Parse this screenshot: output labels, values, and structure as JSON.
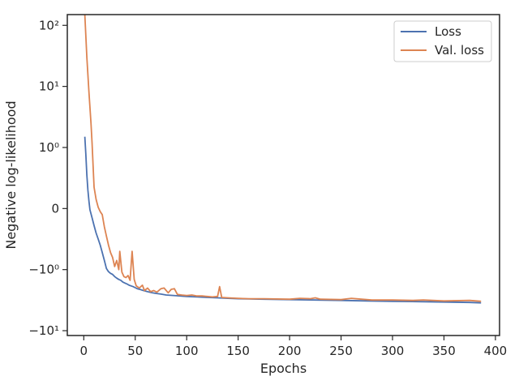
{
  "chart_data": {
    "type": "line",
    "xlabel": "Epochs",
    "ylabel": "Negative log-likelihood",
    "x_ticks": [
      0,
      50,
      100,
      150,
      200,
      250,
      300,
      350,
      400
    ],
    "y_ticks": [
      {
        "value": -10,
        "label": "−10¹"
      },
      {
        "value": -1,
        "label": "−10⁰"
      },
      {
        "value": 0,
        "label": "0"
      },
      {
        "value": 1,
        "label": "10⁰"
      },
      {
        "value": 10,
        "label": "10¹"
      },
      {
        "value": 100,
        "label": "10²"
      }
    ],
    "y_scale": "symlog",
    "xlim": [
      -16,
      404
    ],
    "ylim": [
      -12,
      150
    ],
    "legend_position": "top-right",
    "series": [
      {
        "name": "Loss",
        "color": "#4c72b0",
        "points": [
          [
            1,
            1.5
          ],
          [
            2,
            0.9
          ],
          [
            3,
            0.55
          ],
          [
            4,
            0.3
          ],
          [
            5,
            0.12
          ],
          [
            6,
            -0.02
          ],
          [
            8,
            -0.15
          ],
          [
            10,
            -0.28
          ],
          [
            12,
            -0.4
          ],
          [
            14,
            -0.5
          ],
          [
            16,
            -0.6
          ],
          [
            18,
            -0.72
          ],
          [
            20,
            -0.85
          ],
          [
            22,
            -0.98
          ],
          [
            24,
            -1.08
          ],
          [
            26,
            -1.15
          ],
          [
            28,
            -1.2
          ],
          [
            30,
            -1.3
          ],
          [
            32,
            -1.38
          ],
          [
            34,
            -1.45
          ],
          [
            36,
            -1.5
          ],
          [
            38,
            -1.6
          ],
          [
            40,
            -1.66
          ],
          [
            42,
            -1.72
          ],
          [
            44,
            -1.8
          ],
          [
            46,
            -1.85
          ],
          [
            48,
            -1.9
          ],
          [
            50,
            -1.98
          ],
          [
            52,
            -2.05
          ],
          [
            55,
            -2.12
          ],
          [
            58,
            -2.2
          ],
          [
            62,
            -2.3
          ],
          [
            66,
            -2.38
          ],
          [
            70,
            -2.45
          ],
          [
            75,
            -2.52
          ],
          [
            80,
            -2.6
          ],
          [
            90,
            -2.68
          ],
          [
            100,
            -2.75
          ],
          [
            110,
            -2.8
          ],
          [
            120,
            -2.85
          ],
          [
            130,
            -2.9
          ],
          [
            140,
            -2.95
          ],
          [
            150,
            -3.0
          ],
          [
            175,
            -3.05
          ],
          [
            200,
            -3.1
          ],
          [
            225,
            -3.15
          ],
          [
            250,
            -3.2
          ],
          [
            275,
            -3.25
          ],
          [
            300,
            -3.3
          ],
          [
            325,
            -3.35
          ],
          [
            350,
            -3.4
          ],
          [
            375,
            -3.45
          ],
          [
            386,
            -3.5
          ]
        ]
      },
      {
        "name": "Val. loss",
        "color": "#dd8452",
        "points": [
          [
            1,
            150
          ],
          [
            3,
            30
          ],
          [
            5,
            8
          ],
          [
            7,
            2.5
          ],
          [
            8,
            1.2
          ],
          [
            10,
            0.35
          ],
          [
            12,
            0.15
          ],
          [
            14,
            0.02
          ],
          [
            16,
            -0.05
          ],
          [
            18,
            -0.1
          ],
          [
            20,
            -0.3
          ],
          [
            22,
            -0.45
          ],
          [
            24,
            -0.6
          ],
          [
            26,
            -0.72
          ],
          [
            28,
            -0.8
          ],
          [
            30,
            -0.95
          ],
          [
            32,
            -0.85
          ],
          [
            34,
            -1.0
          ],
          [
            35,
            -0.7
          ],
          [
            37,
            -1.1
          ],
          [
            39,
            -1.3
          ],
          [
            41,
            -1.35
          ],
          [
            43,
            -1.25
          ],
          [
            45,
            -1.5
          ],
          [
            47,
            -0.7
          ],
          [
            49,
            -1.45
          ],
          [
            51,
            -1.85
          ],
          [
            54,
            -2.0
          ],
          [
            57,
            -1.8
          ],
          [
            59,
            -2.2
          ],
          [
            62,
            -2.0
          ],
          [
            65,
            -2.3
          ],
          [
            68,
            -2.2
          ],
          [
            71,
            -2.35
          ],
          [
            75,
            -2.05
          ],
          [
            78,
            -2.0
          ],
          [
            82,
            -2.4
          ],
          [
            85,
            -2.1
          ],
          [
            88,
            -2.05
          ],
          [
            91,
            -2.55
          ],
          [
            95,
            -2.6
          ],
          [
            100,
            -2.65
          ],
          [
            105,
            -2.6
          ],
          [
            110,
            -2.7
          ],
          [
            115,
            -2.7
          ],
          [
            120,
            -2.75
          ],
          [
            125,
            -2.8
          ],
          [
            130,
            -2.75
          ],
          [
            132,
            -1.9
          ],
          [
            134,
            -2.85
          ],
          [
            140,
            -2.9
          ],
          [
            150,
            -2.95
          ],
          [
            160,
            -3.0
          ],
          [
            175,
            -3.0
          ],
          [
            200,
            -3.05
          ],
          [
            210,
            -2.95
          ],
          [
            220,
            -3.0
          ],
          [
            225,
            -2.9
          ],
          [
            230,
            -3.05
          ],
          [
            250,
            -3.1
          ],
          [
            260,
            -2.95
          ],
          [
            270,
            -3.05
          ],
          [
            280,
            -3.15
          ],
          [
            300,
            -3.15
          ],
          [
            320,
            -3.2
          ],
          [
            330,
            -3.15
          ],
          [
            350,
            -3.25
          ],
          [
            375,
            -3.2
          ],
          [
            386,
            -3.3
          ]
        ]
      }
    ]
  }
}
